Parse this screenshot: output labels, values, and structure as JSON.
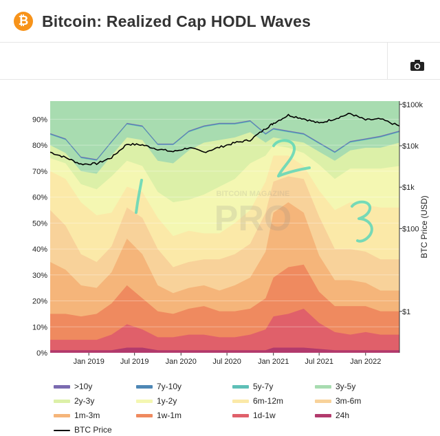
{
  "header": {
    "coin_symbol": "₿",
    "title": "Bitcoin: Realized Cap HODL Waves"
  },
  "toolbar": {
    "camera_icon": "camera-icon"
  },
  "watermark": {
    "line1": "BITCOIN MAGAZINE",
    "line2": "PRO"
  },
  "annotations": [
    "1",
    "2",
    "3"
  ],
  "chart_data": {
    "type": "area",
    "title": "",
    "xlabel": "",
    "ylabel_left": "",
    "ylabel_right": "BTC Price (USD)",
    "x_range": [
      "2018-08-01",
      "2022-05-15"
    ],
    "x_tick_labels": [
      "Jan 2019",
      "Jul 2019",
      "Jan 2020",
      "Jul 2020",
      "Jan 2021",
      "Jul 2021",
      "Jan 2022"
    ],
    "y_left_ticks": [
      "0%",
      "10%",
      "20%",
      "30%",
      "40%",
      "50%",
      "60%",
      "70%",
      "80%",
      "90%"
    ],
    "y_left_range": [
      0,
      0.97
    ],
    "y_right_scale": "log",
    "y_right_ticks": [
      "$1",
      "$100",
      "$1k",
      "$10k",
      "$100k"
    ],
    "y_right_range": [
      0.1,
      120000
    ],
    "stacked": true,
    "dates": [
      "2018-08",
      "2018-10",
      "2018-12",
      "2019-02",
      "2019-04",
      "2019-06",
      "2019-08",
      "2019-10",
      "2019-12",
      "2020-02",
      "2020-04",
      "2020-06",
      "2020-08",
      "2020-10",
      "2020-12",
      "2021-01",
      "2021-03",
      "2021-05",
      "2021-07",
      "2021-09",
      "2021-11",
      "2022-01",
      "2022-03",
      "2022-05"
    ],
    "series": [
      {
        "name": ">10y",
        "color": "#7b6bb0",
        "values": [
          0.002,
          0.002,
          0.002,
          0.002,
          0.002,
          0.002,
          0.002,
          0.002,
          0.002,
          0.002,
          0.002,
          0.002,
          0.002,
          0.002,
          0.002,
          0.002,
          0.002,
          0.002,
          0.002,
          0.002,
          0.002,
          0.002,
          0.002,
          0.002
        ]
      },
      {
        "name": "7y-10y",
        "color": "#4e87b5",
        "values": [
          0.002,
          0.002,
          0.002,
          0.002,
          0.002,
          0.002,
          0.002,
          0.002,
          0.002,
          0.002,
          0.002,
          0.002,
          0.002,
          0.002,
          0.002,
          0.002,
          0.002,
          0.002,
          0.002,
          0.002,
          0.002,
          0.002,
          0.002,
          0.002
        ]
      },
      {
        "name": "5y-7y",
        "color": "#5ebfb7",
        "values": [
          0.002,
          0.002,
          0.002,
          0.002,
          0.002,
          0.002,
          0.002,
          0.002,
          0.002,
          0.002,
          0.002,
          0.002,
          0.002,
          0.002,
          0.002,
          0.002,
          0.002,
          0.002,
          0.002,
          0.002,
          0.002,
          0.002,
          0.002,
          0.002
        ]
      },
      {
        "name": "3y-5y",
        "color": "#a8dcb0",
        "values": [
          0.04,
          0.05,
          0.05,
          0.05,
          0.05,
          0.05,
          0.05,
          0.06,
          0.07,
          0.07,
          0.06,
          0.06,
          0.05,
          0.04,
          0.03,
          0.03,
          0.03,
          0.03,
          0.03,
          0.03,
          0.03,
          0.03,
          0.04,
          0.04
        ]
      },
      {
        "name": "2y-3y",
        "color": "#dcf0a8",
        "values": [
          0.05,
          0.04,
          0.05,
          0.06,
          0.08,
          0.09,
          0.1,
          0.12,
          0.15,
          0.19,
          0.2,
          0.18,
          0.16,
          0.12,
          0.05,
          0.03,
          0.03,
          0.04,
          0.05,
          0.07,
          0.07,
          0.08,
          0.08,
          0.09
        ]
      },
      {
        "name": "1y-2y",
        "color": "#f4f7b2",
        "values": [
          0.05,
          0.06,
          0.07,
          0.1,
          0.14,
          0.1,
          0.1,
          0.1,
          0.13,
          0.12,
          0.15,
          0.18,
          0.17,
          0.18,
          0.1,
          0.04,
          0.03,
          0.05,
          0.1,
          0.12,
          0.13,
          0.14,
          0.15,
          0.16
        ]
      },
      {
        "name": "6m-12m",
        "color": "#fbe9a8",
        "values": [
          0.15,
          0.18,
          0.2,
          0.18,
          0.13,
          0.08,
          0.1,
          0.12,
          0.12,
          0.12,
          0.1,
          0.1,
          0.12,
          0.13,
          0.12,
          0.1,
          0.08,
          0.05,
          0.1,
          0.15,
          0.18,
          0.18,
          0.2,
          0.2
        ]
      },
      {
        "name": "3m-6m",
        "color": "#f8d29a",
        "values": [
          0.2,
          0.17,
          0.12,
          0.1,
          0.1,
          0.12,
          0.14,
          0.14,
          0.1,
          0.1,
          0.1,
          0.12,
          0.12,
          0.13,
          0.15,
          0.12,
          0.1,
          0.13,
          0.15,
          0.12,
          0.12,
          0.12,
          0.12,
          0.12
        ]
      },
      {
        "name": "1m-3m",
        "color": "#f5b57a",
        "values": [
          0.2,
          0.17,
          0.12,
          0.1,
          0.12,
          0.18,
          0.17,
          0.1,
          0.08,
          0.08,
          0.08,
          0.08,
          0.1,
          0.12,
          0.18,
          0.25,
          0.25,
          0.2,
          0.14,
          0.1,
          0.1,
          0.09,
          0.08,
          0.08
        ]
      },
      {
        "name": "1w-1m",
        "color": "#ef8a5f",
        "values": [
          0.1,
          0.1,
          0.09,
          0.1,
          0.12,
          0.15,
          0.12,
          0.1,
          0.09,
          0.1,
          0.11,
          0.1,
          0.1,
          0.1,
          0.12,
          0.15,
          0.18,
          0.17,
          0.12,
          0.1,
          0.11,
          0.1,
          0.09,
          0.09
        ]
      },
      {
        "name": "1d-1w",
        "color": "#e0606a",
        "values": [
          0.04,
          0.04,
          0.04,
          0.04,
          0.06,
          0.09,
          0.07,
          0.05,
          0.05,
          0.06,
          0.06,
          0.05,
          0.05,
          0.06,
          0.08,
          0.12,
          0.13,
          0.15,
          0.1,
          0.07,
          0.06,
          0.07,
          0.06,
          0.06
        ]
      },
      {
        "name": "24h",
        "color": "#b23a6c",
        "values": [
          0.01,
          0.01,
          0.01,
          0.01,
          0.01,
          0.02,
          0.02,
          0.01,
          0.01,
          0.01,
          0.01,
          0.01,
          0.01,
          0.01,
          0.01,
          0.02,
          0.02,
          0.02,
          0.015,
          0.01,
          0.01,
          0.01,
          0.01,
          0.01
        ]
      }
    ],
    "price_series": {
      "name": "BTC Price",
      "color": "#000000",
      "values": [
        7000,
        5200,
        3600,
        3700,
        5200,
        11000,
        10500,
        8300,
        7200,
        9000,
        7000,
        9200,
        11800,
        13800,
        26000,
        35000,
        55000,
        45000,
        35000,
        45000,
        60000,
        42000,
        44000,
        30000
      ]
    },
    "grid": true,
    "legend_position": "bottom"
  }
}
